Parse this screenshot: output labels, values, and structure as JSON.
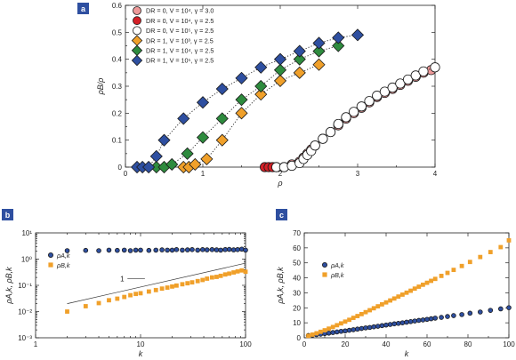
{
  "chart_data": [
    {
      "panel": "a",
      "type": "scatter",
      "xlabel": "ρ",
      "ylabel": "ρB/ρ",
      "xlim": [
        0,
        4
      ],
      "ylim": [
        0,
        0.6
      ],
      "xticks": [
        "0",
        "1",
        "2",
        "3",
        "4"
      ],
      "yticks": [
        "0",
        "0.1",
        "0.2",
        "0.3",
        "0.4",
        "0.5",
        "0.6"
      ],
      "legend": "top-left",
      "series": [
        {
          "name": "DR = 0, V = 10⁴, γ = 3.0",
          "marker": "circle",
          "color": "#ee9999",
          "x": [
            1.95,
            2.05,
            2.15,
            2.25,
            2.3,
            2.35,
            2.4,
            2.45,
            2.55,
            2.65,
            2.75,
            2.85,
            2.95,
            3.05,
            3.15,
            3.25,
            3.35,
            3.45,
            3.55,
            3.65,
            3.75,
            3.85,
            3.95
          ],
          "y": [
            0,
            0,
            0.01,
            0.02,
            0.035,
            0.05,
            0.065,
            0.08,
            0.105,
            0.13,
            0.155,
            0.18,
            0.2,
            0.22,
            0.24,
            0.26,
            0.275,
            0.29,
            0.305,
            0.32,
            0.335,
            0.35,
            0.36
          ]
        },
        {
          "name": "DR = 0, V = 10⁴, γ = 2.5",
          "marker": "circle",
          "color": "#d42027",
          "x": [
            1.8,
            1.85,
            1.9
          ],
          "y": [
            0,
            0,
            0
          ]
        },
        {
          "name": "DR = 0, V = 10⁵, γ = 2.5",
          "marker": "circle",
          "color": "#ffffff",
          "x": [
            1.95,
            2.05,
            2.15,
            2.25,
            2.3,
            2.35,
            2.4,
            2.45,
            2.55,
            2.65,
            2.75,
            2.85,
            2.95,
            3.05,
            3.15,
            3.25,
            3.35,
            3.45,
            3.55,
            3.65,
            3.75,
            3.85,
            4.0
          ],
          "y": [
            0,
            0,
            0.005,
            0.015,
            0.03,
            0.045,
            0.06,
            0.08,
            0.105,
            0.13,
            0.16,
            0.185,
            0.205,
            0.225,
            0.245,
            0.265,
            0.28,
            0.295,
            0.31,
            0.325,
            0.34,
            0.355,
            0.37
          ]
        },
        {
          "name": "DR = 1, V = 10³, γ = 2.5",
          "marker": "diamond",
          "color": "#f0a02a",
          "x": [
            0.75,
            0.82,
            0.9,
            1.05,
            1.25,
            1.5,
            1.75,
            2.0,
            2.25,
            2.5
          ],
          "y": [
            0,
            0,
            0.01,
            0.03,
            0.1,
            0.2,
            0.27,
            0.32,
            0.35,
            0.38
          ]
        },
        {
          "name": "DR = 1, V = 10⁴, γ = 2.5",
          "marker": "diamond",
          "color": "#2e8b3e",
          "x": [
            0.4,
            0.5,
            0.6,
            0.8,
            1.0,
            1.25,
            1.5,
            1.75,
            2.0,
            2.25,
            2.5,
            2.75
          ],
          "y": [
            0,
            0,
            0.01,
            0.05,
            0.11,
            0.18,
            0.25,
            0.3,
            0.36,
            0.4,
            0.43,
            0.45
          ]
        },
        {
          "name": "DR = 1, V = 10⁵, γ = 2.5",
          "marker": "diamond",
          "color": "#2e4fa0",
          "x": [
            0.15,
            0.22,
            0.3,
            0.4,
            0.5,
            0.75,
            1.0,
            1.25,
            1.5,
            1.75,
            2.0,
            2.25,
            2.5,
            2.75,
            3.0
          ],
          "y": [
            0,
            0,
            0,
            0.04,
            0.1,
            0.18,
            0.24,
            0.29,
            0.33,
            0.37,
            0.4,
            0.43,
            0.46,
            0.48,
            0.49
          ]
        }
      ]
    },
    {
      "panel": "b",
      "type": "scatter",
      "xlabel": "k",
      "ylabel": "ρA,k, ρB,k",
      "xscale": "log",
      "yscale": "log",
      "xlim": [
        1,
        100
      ],
      "ylim": [
        0.001,
        10
      ],
      "xticks": [
        "1",
        "10",
        "100"
      ],
      "yticks": [
        "10⁻³",
        "10⁻²",
        "10⁻¹",
        "10⁰",
        "10¹"
      ],
      "legend": "left",
      "slope_annotation": "1",
      "series": [
        {
          "name": "ρA,k",
          "marker": "circle",
          "color": "#2e4fa0",
          "x": [
            2,
            3,
            4,
            5,
            6,
            7,
            8,
            9,
            10,
            12,
            14,
            16,
            18,
            20,
            22,
            25,
            28,
            31,
            35,
            39,
            43,
            48,
            53,
            58,
            64,
            70,
            77,
            84,
            92,
            100
          ],
          "y": [
            2.1,
            2.15,
            2.1,
            2.2,
            2.15,
            2.2,
            2.1,
            2.2,
            2.2,
            2.15,
            2.2,
            2.25,
            2.2,
            2.2,
            2.3,
            2.2,
            2.25,
            2.3,
            2.2,
            2.3,
            2.25,
            2.3,
            2.25,
            2.2,
            2.3,
            2.35,
            2.25,
            2.3,
            2.4,
            2.2
          ]
        },
        {
          "name": "ρB,k",
          "marker": "square",
          "color": "#f0a02a",
          "x": [
            2,
            3,
            4,
            5,
            6,
            7,
            8,
            9,
            10,
            12,
            14,
            16,
            18,
            20,
            22,
            25,
            28,
            31,
            35,
            39,
            43,
            48,
            53,
            58,
            64,
            70,
            77,
            84,
            92,
            100
          ],
          "y": [
            0.01,
            0.016,
            0.021,
            0.027,
            0.031,
            0.036,
            0.042,
            0.047,
            0.05,
            0.058,
            0.066,
            0.075,
            0.082,
            0.09,
            0.098,
            0.11,
            0.12,
            0.13,
            0.145,
            0.16,
            0.18,
            0.2,
            0.21,
            0.23,
            0.26,
            0.28,
            0.31,
            0.34,
            0.37,
            0.33
          ]
        }
      ]
    },
    {
      "panel": "c",
      "type": "scatter",
      "xlabel": "k",
      "ylabel": "ρA,k, ρB,k",
      "xlim": [
        0,
        100
      ],
      "ylim": [
        0,
        70
      ],
      "xticks": [
        "0",
        "20",
        "40",
        "60",
        "80",
        "100"
      ],
      "yticks": [
        "0",
        "10",
        "20",
        "30",
        "40",
        "50",
        "60",
        "70"
      ],
      "legend": "left",
      "series": [
        {
          "name": "ρA,k",
          "marker": "circle",
          "color": "#2e4fa0",
          "x": [
            2,
            4,
            6,
            8,
            10,
            12,
            14,
            16,
            18,
            20,
            22,
            24,
            26,
            28,
            30,
            32,
            34,
            36,
            38,
            40,
            42,
            44,
            46,
            48,
            50,
            52,
            54,
            56,
            58,
            60,
            62,
            64,
            67,
            70,
            73,
            77,
            81,
            86,
            91,
            96,
            100
          ],
          "y": [
            1.5,
            1.8,
            2.1,
            2.4,
            2.8,
            3.1,
            3.5,
            3.9,
            4.3,
            4.6,
            5.0,
            5.4,
            5.8,
            6.2,
            6.6,
            6.9,
            7.3,
            7.7,
            8.1,
            8.5,
            8.9,
            9.3,
            9.6,
            10.0,
            10.4,
            10.8,
            11.2,
            11.6,
            11.9,
            12.3,
            12.7,
            13.1,
            13.6,
            14.2,
            14.8,
            15.5,
            16.4,
            17.2,
            18.3,
            19.3,
            20.1
          ]
        },
        {
          "name": "ρB,k",
          "marker": "square",
          "color": "#f0a02a",
          "x": [
            2,
            4,
            6,
            8,
            10,
            12,
            14,
            16,
            18,
            20,
            22,
            24,
            26,
            28,
            30,
            32,
            34,
            36,
            38,
            40,
            42,
            44,
            46,
            48,
            50,
            52,
            54,
            56,
            58,
            60,
            62,
            64,
            67,
            70,
            73,
            77,
            81,
            86,
            91,
            96,
            100
          ],
          "y": [
            1.3,
            2.1,
            3.0,
            4.0,
            5.0,
            6.1,
            7.2,
            8.4,
            9.6,
            10.8,
            12.0,
            13.3,
            14.5,
            15.8,
            17.1,
            18.4,
            19.7,
            21.0,
            22.3,
            23.6,
            24.9,
            26.2,
            27.5,
            28.8,
            30.1,
            31.4,
            32.8,
            34.1,
            35.4,
            36.7,
            38.0,
            39.3,
            41.3,
            43.3,
            45.3,
            47.9,
            50.6,
            53.9,
            57.2,
            60.5,
            65.0
          ]
        }
      ]
    }
  ],
  "labels": {
    "panel_a": "a",
    "panel_b": "b",
    "panel_c": "c"
  }
}
